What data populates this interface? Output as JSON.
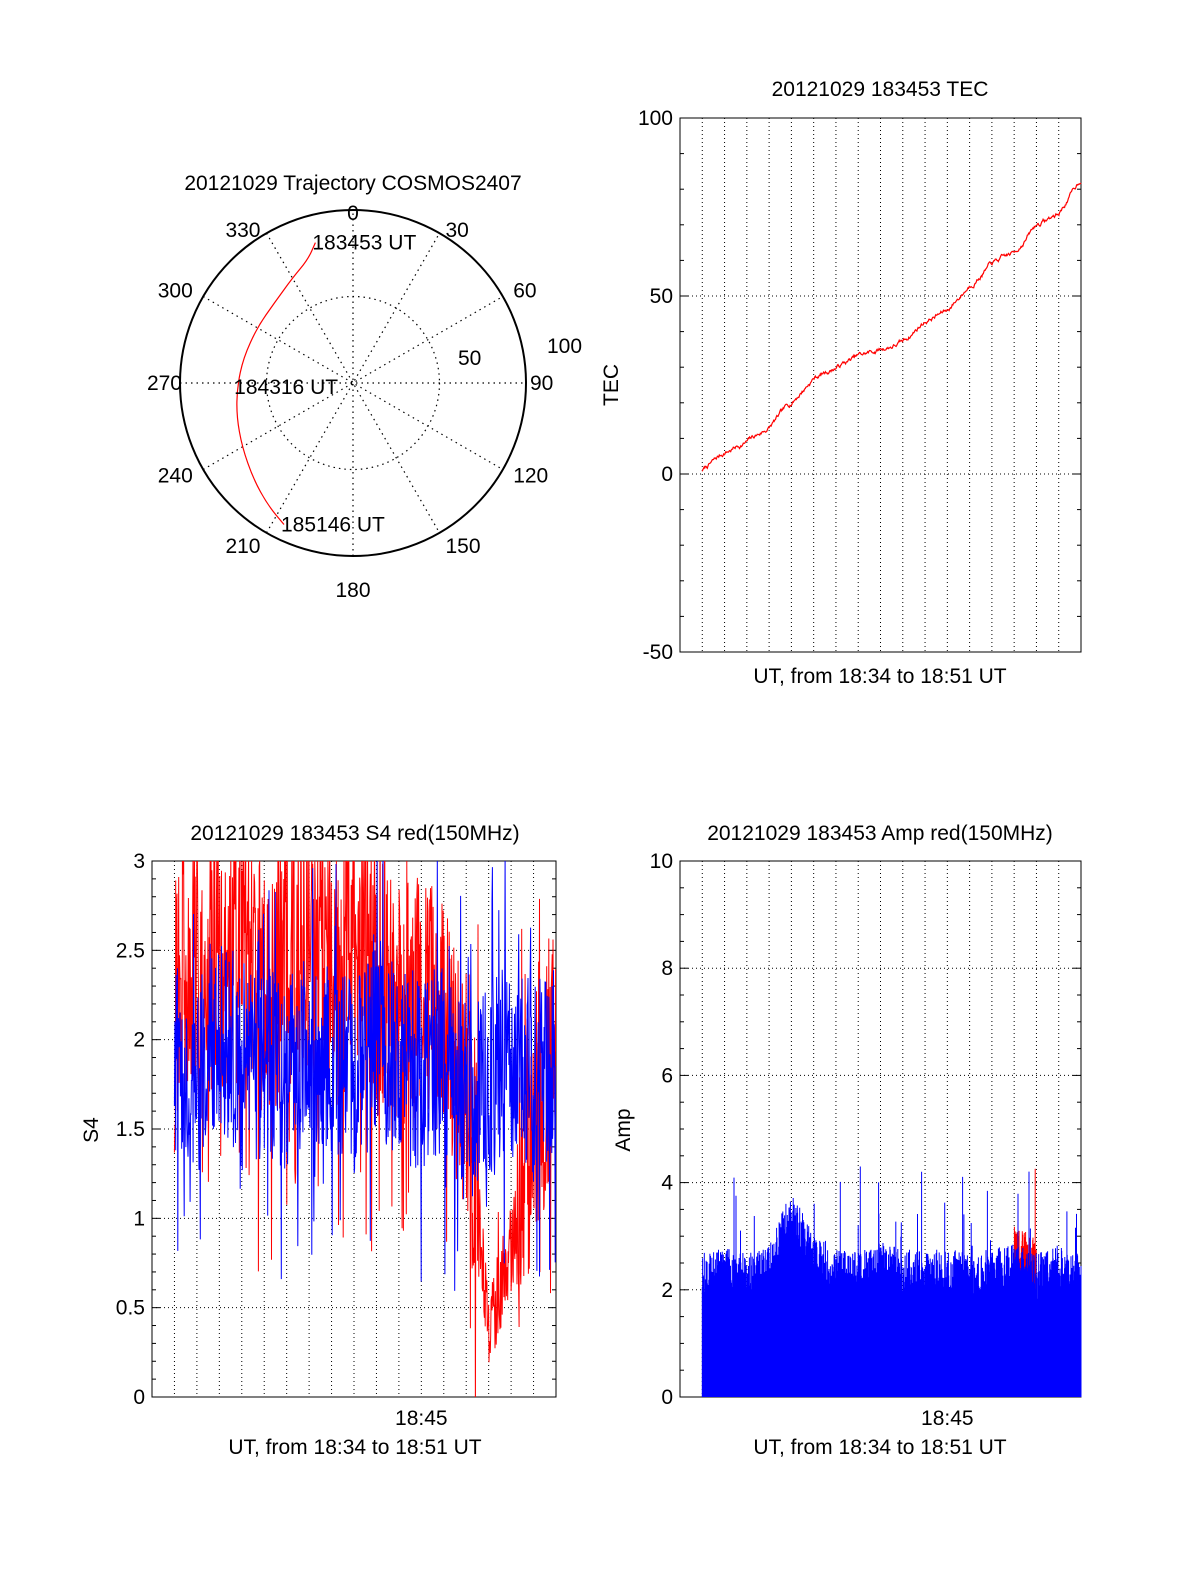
{
  "colors": {
    "red": "#ff0000",
    "blue": "#0000ff",
    "axis": "#000000",
    "grid": "#000000"
  },
  "chart_data": [
    {
      "type": "polar",
      "title": "20121029 Trajectory COSMOS2407",
      "azimuth_labels": [
        "0",
        "30",
        "60",
        "90",
        "120",
        "150",
        "180",
        "210",
        "240",
        "270",
        "300",
        "330"
      ],
      "radius_labels": [
        "50",
        "100"
      ],
      "rlim": [
        0,
        100
      ],
      "trajectory_color": "red",
      "trajectory": [
        {
          "az": 345,
          "r": 84
        },
        {
          "az": 340,
          "r": 76
        },
        {
          "az": 330,
          "r": 70
        },
        {
          "az": 316,
          "r": 65
        },
        {
          "az": 300,
          "r": 64
        },
        {
          "az": 283,
          "r": 65
        },
        {
          "az": 268,
          "r": 67
        },
        {
          "az": 254,
          "r": 70
        },
        {
          "az": 240,
          "r": 74
        },
        {
          "az": 226,
          "r": 80
        },
        {
          "az": 215,
          "r": 86
        },
        {
          "az": 206,
          "r": 91
        }
      ],
      "annotations": [
        {
          "text": "183453 UT",
          "az": 345,
          "r": 84
        },
        {
          "text": "184316 UT",
          "az": 268,
          "r": 67
        },
        {
          "text": "185146 UT",
          "az": 206,
          "r": 91
        }
      ]
    },
    {
      "type": "line",
      "title": "20121029 183453 TEC",
      "xlabel": "UT, from 18:34 to 18:51 UT",
      "ylabel": "TEC",
      "xlim": [
        "18:33",
        "18:51"
      ],
      "ylim": [
        -50,
        100
      ],
      "yticks": [
        "-50",
        "0",
        "50",
        "100"
      ],
      "grid": true,
      "series": [
        {
          "color": "red",
          "x": [
            "18:34",
            "18:35",
            "18:36",
            "18:37",
            "18:38",
            "18:39",
            "18:40",
            "18:41",
            "18:42",
            "18:43",
            "18:44",
            "18:45",
            "18:46",
            "18:47",
            "18:48",
            "18:49",
            "18:50",
            "18:51"
          ],
          "values": [
            1,
            6,
            9,
            13,
            20,
            27,
            30,
            33,
            35,
            37,
            43,
            46,
            53,
            59,
            62,
            70,
            73,
            83
          ]
        }
      ]
    },
    {
      "type": "line",
      "title": "20121029 183453 S4 red(150MHz)",
      "xlabel": "UT, from 18:34 to 18:51 UT",
      "ylabel": "S4",
      "xlim": [
        "18:33",
        "18:51"
      ],
      "ylim": [
        0,
        3
      ],
      "yticks": [
        "0",
        "0.5",
        "1",
        "1.5",
        "2",
        "2.5",
        "3"
      ],
      "xticks": [
        "18:45"
      ],
      "grid": true,
      "series": [
        {
          "color": "red",
          "x": [
            "18:34",
            "18:35",
            "18:36",
            "18:37",
            "18:38",
            "18:39",
            "18:40",
            "18:41",
            "18:42",
            "18:43",
            "18:44",
            "18:45",
            "18:46",
            "18:47",
            "18:48",
            "18:49",
            "18:50",
            "18:51"
          ],
          "values": [
            2.2,
            2.4,
            2.3,
            2.5,
            2.2,
            2.4,
            2.6,
            2.3,
            2.5,
            2.4,
            2.3,
            2.2,
            2.1,
            1.8,
            0.4,
            0.8,
            1.6,
            2.0
          ]
        },
        {
          "color": "blue",
          "x": [
            "18:34",
            "18:35",
            "18:36",
            "18:37",
            "18:38",
            "18:39",
            "18:40",
            "18:41",
            "18:42",
            "18:43",
            "18:44",
            "18:45",
            "18:46",
            "18:47",
            "18:48",
            "18:49",
            "18:50",
            "18:51"
          ],
          "values": [
            1.9,
            1.8,
            2.0,
            1.8,
            1.9,
            1.8,
            2.0,
            1.9,
            1.8,
            2.0,
            1.9,
            1.8,
            1.9,
            1.7,
            1.8,
            1.9,
            1.8,
            1.9
          ]
        }
      ]
    },
    {
      "type": "line",
      "title": "20121029 183453 Amp red(150MHz)",
      "xlabel": "UT, from 18:34 to 18:51 UT",
      "ylabel": "Amp",
      "xlim": [
        "18:33",
        "18:51"
      ],
      "ylim": [
        0,
        10
      ],
      "yticks": [
        "0",
        "2",
        "4",
        "6",
        "8",
        "10"
      ],
      "xticks": [
        "18:45"
      ],
      "grid": true,
      "series": [
        {
          "color": "blue",
          "x": [
            "18:34",
            "18:35",
            "18:36",
            "18:37",
            "18:38",
            "18:39",
            "18:40",
            "18:41",
            "18:42",
            "18:43",
            "18:44",
            "18:45",
            "18:46",
            "18:47",
            "18:48",
            "18:49",
            "18:50",
            "18:51"
          ],
          "values": [
            2.3,
            2.4,
            2.3,
            2.4,
            3.5,
            2.6,
            2.4,
            2.3,
            2.5,
            2.4,
            2.3,
            2.4,
            2.3,
            2.4,
            2.5,
            2.3,
            2.4,
            2.3
          ]
        },
        {
          "color": "red",
          "x": [
            "18:48",
            "18:49"
          ],
          "values": [
            2.8,
            2.6
          ]
        }
      ]
    }
  ]
}
